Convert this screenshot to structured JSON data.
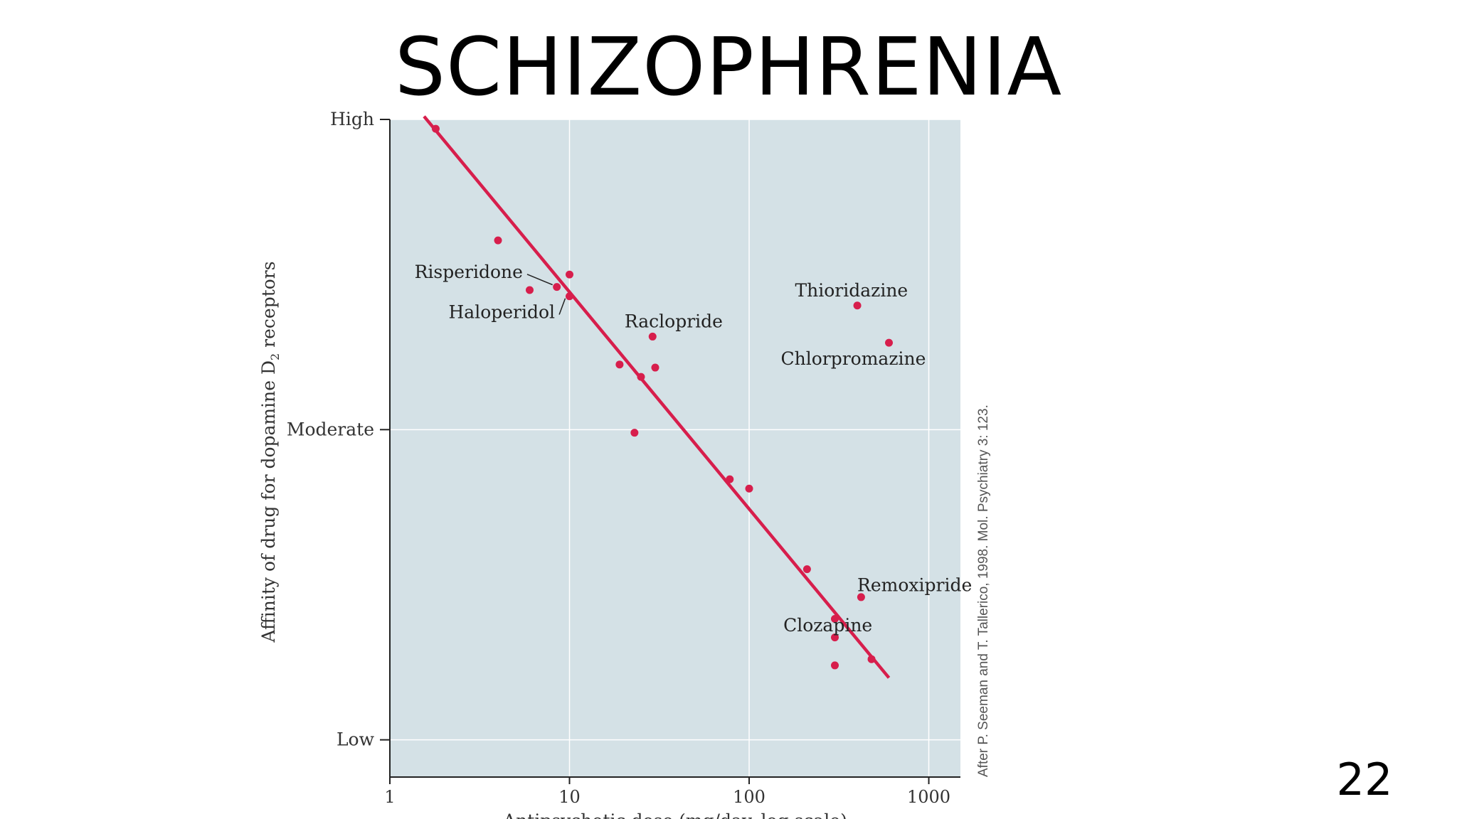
{
  "slide": {
    "title": "SCHIZOPHRENIA",
    "page_number": "22"
  },
  "colors": {
    "plot_background": "#d4e1e6",
    "data_red": "#d71e4c",
    "gridline": "#ffffff",
    "axis": "#222222"
  },
  "chart_data": {
    "type": "scatter",
    "title": "",
    "xlabel": "Antipsychotic dose (mg/day, log scale)",
    "ylabel_parts": [
      "Affinity of drug for dopamine D",
      "2",
      " receptors"
    ],
    "x_scale": "log",
    "xlim": [
      1,
      1500
    ],
    "x_ticks": [
      1,
      10,
      100,
      1000
    ],
    "x_tick_labels": [
      "1",
      "10",
      "100",
      "1000"
    ],
    "ylim": [
      0,
      2.12
    ],
    "y_ticks": [
      0.12,
      1.12,
      2.12
    ],
    "y_tick_labels": [
      "Low",
      "Moderate",
      "High"
    ],
    "grid": "horizontal lines at y ticks",
    "source_note": "After P. Seeman and T. Tallerico, 1998. Mol. Psychiatry 3: 123.",
    "points": [
      {
        "x": 1.8,
        "y": 2.09
      },
      {
        "x": 4,
        "y": 1.73
      },
      {
        "x": 6,
        "y": 1.57
      },
      {
        "x": 8.5,
        "y": 1.58
      },
      {
        "x": 10,
        "y": 1.62
      },
      {
        "x": 10,
        "y": 1.55
      },
      {
        "x": 19,
        "y": 1.33
      },
      {
        "x": 25,
        "y": 1.29
      },
      {
        "x": 23,
        "y": 1.11
      },
      {
        "x": 29,
        "y": 1.42
      },
      {
        "x": 30,
        "y": 1.32
      },
      {
        "x": 78,
        "y": 0.96
      },
      {
        "x": 100,
        "y": 0.93
      },
      {
        "x": 210,
        "y": 0.67
      },
      {
        "x": 300,
        "y": 0.51
      },
      {
        "x": 300,
        "y": 0.45
      },
      {
        "x": 300,
        "y": 0.36
      },
      {
        "x": 420,
        "y": 0.58
      },
      {
        "x": 480,
        "y": 0.38
      },
      {
        "x": 400,
        "y": 1.52
      },
      {
        "x": 600,
        "y": 1.4
      }
    ],
    "fit_line": {
      "x": [
        1.55,
        600
      ],
      "y": [
        2.13,
        0.32
      ]
    },
    "annotations": [
      {
        "text": "Risperidone",
        "point": [
          8.5,
          1.58
        ],
        "label_at": [
          5.5,
          1.63
        ],
        "anchor": "end",
        "leader": true
      },
      {
        "text": "Haloperidol",
        "point": [
          10,
          1.55
        ],
        "label_at": [
          8.3,
          1.5
        ],
        "anchor": "end",
        "leader": true
      },
      {
        "text": "Raclopride",
        "point": [
          29,
          1.42
        ],
        "label_at": [
          38,
          1.47
        ],
        "anchor": "middle",
        "leader": false
      },
      {
        "text": "Thioridazine",
        "point": [
          400,
          1.52
        ],
        "label_at": [
          180,
          1.57
        ],
        "anchor": "start",
        "leader": false
      },
      {
        "text": "Chlorpromazine",
        "point": [
          600,
          1.4
        ],
        "label_at": [
          150,
          1.35
        ],
        "anchor": "start",
        "leader": false
      },
      {
        "text": "Remoxipride",
        "point": [
          420,
          0.58
        ],
        "label_at": [
          400,
          0.62
        ],
        "anchor": "start",
        "leader": false
      },
      {
        "text": "Clozapine",
        "point": [
          300,
          0.51
        ],
        "label_at": [
          155,
          0.49
        ],
        "anchor": "start",
        "leader": false
      }
    ]
  }
}
